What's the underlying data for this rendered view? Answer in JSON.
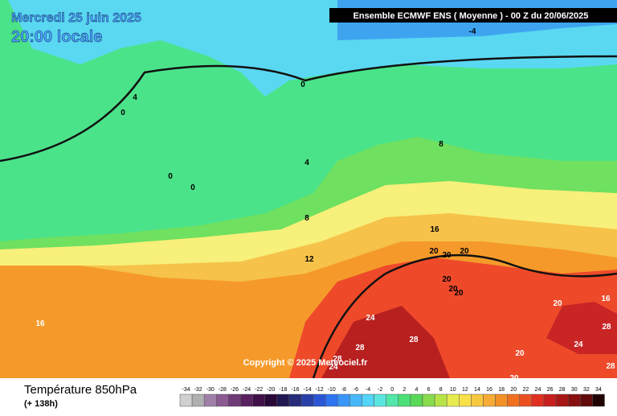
{
  "header": {
    "date": "Mercredi 25 juin 2025",
    "time": "20:00 locale",
    "run": "Ensemble ECMWF ENS  ( Moyenne )  -  00 Z du 20/06/2025"
  },
  "map": {
    "contour_labels": [
      "-4",
      "4",
      "0",
      "0",
      "0",
      "0",
      "4",
      "8",
      "8",
      "12",
      "16",
      "20",
      "20",
      "20",
      "20",
      "20",
      "20",
      "16",
      "24",
      "28",
      "28",
      "28",
      "24",
      "20",
      "16",
      "28",
      "24",
      "20",
      "20",
      "28"
    ],
    "copyright": "Copyright © 2025 Meteociel.fr"
  },
  "footer": {
    "title": "Température 850hPa",
    "lead": "(+ 138h)"
  },
  "legend": {
    "labels": [
      "-34",
      "-32",
      "-30",
      "-28",
      "-26",
      "-24",
      "-22",
      "-20",
      "-18",
      "-16",
      "-14",
      "-12",
      "-10",
      "-8",
      "-6",
      "-4",
      "-2",
      "0",
      "2",
      "4",
      "6",
      "8",
      "10",
      "12",
      "14",
      "16",
      "18",
      "20",
      "22",
      "24",
      "26",
      "28",
      "30",
      "32",
      "34"
    ]
  }
}
